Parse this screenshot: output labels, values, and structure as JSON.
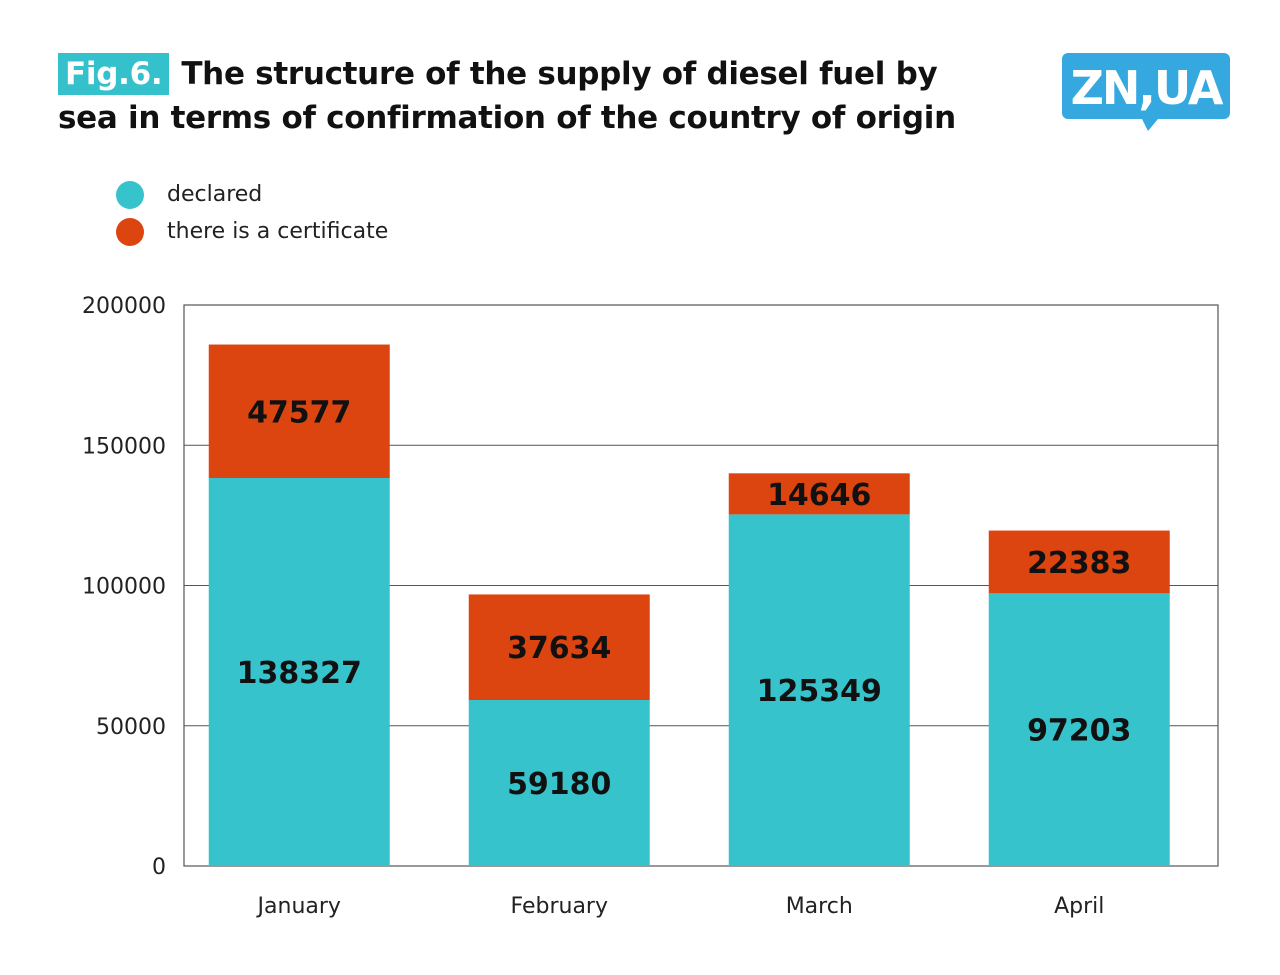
{
  "header": {
    "badge": "Fig.6.",
    "title_line1": "The structure of the supply of diesel fuel by",
    "title_line2": "sea in terms of confirmation of the country of origin"
  },
  "logo": {
    "text": "ZN,UA",
    "color": "#35a8e0"
  },
  "colors": {
    "declared": "#36c3cc",
    "certificate": "#dd4510",
    "badge": "#35c1cb"
  },
  "legend": [
    {
      "label": "declared",
      "color": "#36c3cc"
    },
    {
      "label": "there is a certificate",
      "color": "#dd4510"
    }
  ],
  "chart_data": {
    "type": "bar",
    "stacked": true,
    "title": "The structure of the supply of diesel fuel by sea in terms of confirmation of the country of origin",
    "categories": [
      "January",
      "February",
      "March",
      "April"
    ],
    "series": [
      {
        "name": "declared",
        "color": "#36c3cc",
        "values": [
          138327,
          59180,
          125349,
          97203
        ]
      },
      {
        "name": "there is a certificate",
        "color": "#dd4510",
        "values": [
          47577,
          37634,
          14646,
          22383
        ]
      }
    ],
    "ylim": [
      0,
      200000
    ],
    "yticks": [
      "0",
      "50000",
      "100000",
      "150000",
      "200000"
    ],
    "grid": "horizontal",
    "legend_position": "top-left",
    "data_labels": true
  }
}
